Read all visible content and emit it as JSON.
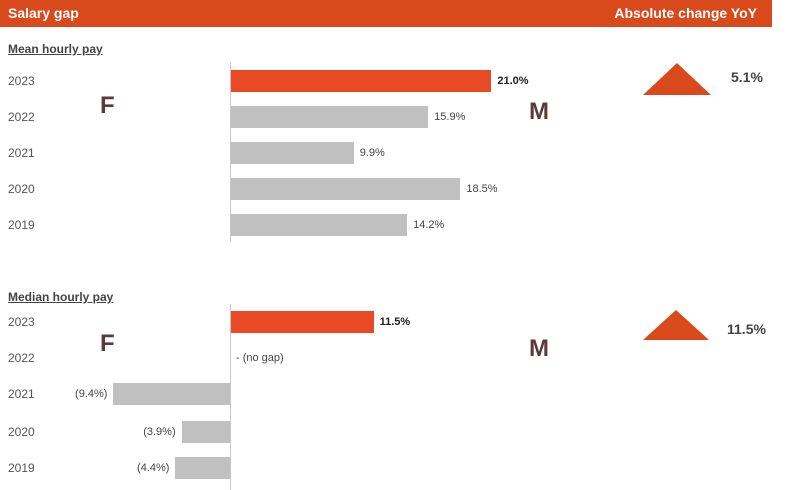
{
  "header": {
    "title": "Salary gap",
    "right_label": "Absolute change YoY"
  },
  "labels": {
    "female": "F",
    "male": "M"
  },
  "colors": {
    "header": "#d84a1c",
    "highlight": "#e84a26",
    "bar": "#c0c0c0",
    "triangle": "#d84a1c"
  },
  "chart_data": [
    {
      "type": "bar",
      "orientation": "horizontal",
      "title": "Mean hourly pay",
      "categories": [
        "2023",
        "2022",
        "2021",
        "2020",
        "2019"
      ],
      "values": [
        21.0,
        15.9,
        9.9,
        18.5,
        14.2
      ],
      "value_labels": [
        "21.0%",
        "15.9%",
        "9.9%",
        "18.5%",
        "14.2%"
      ],
      "highlight": "2023",
      "change_yoy": "5.1%",
      "change_direction": "up"
    },
    {
      "type": "bar",
      "orientation": "horizontal",
      "title": "Median hourly pay",
      "categories": [
        "2023",
        "2022",
        "2021",
        "2020",
        "2019"
      ],
      "values": [
        11.5,
        0,
        -9.4,
        -3.9,
        -4.4
      ],
      "value_labels": [
        "11.5%",
        "- (no gap)",
        "(9.4%)",
        "(3.9%)",
        "(4.4%)"
      ],
      "highlight": "2023",
      "change_yoy": "11.5%",
      "change_direction": "up"
    }
  ]
}
